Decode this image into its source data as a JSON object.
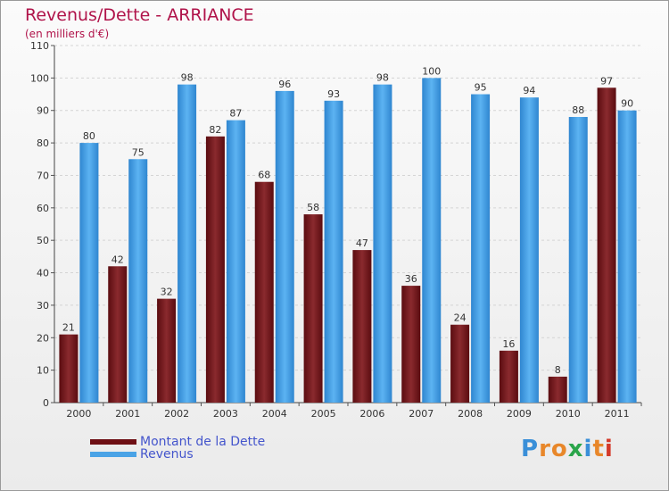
{
  "chart_data": {
    "type": "bar",
    "title": "Revenus/Dette - ARRIANCE",
    "subtitle": "(en milliers d'€)",
    "categories": [
      "2000",
      "2001",
      "2002",
      "2003",
      "2004",
      "2005",
      "2006",
      "2007",
      "2008",
      "2009",
      "2010",
      "2011"
    ],
    "series": [
      {
        "name": "Montant de la Dette",
        "color": "#7a1a1e",
        "values": [
          21,
          42,
          32,
          82,
          68,
          58,
          47,
          36,
          24,
          16,
          8,
          97
        ]
      },
      {
        "name": "Revenus",
        "color": "#4aa3e6",
        "values": [
          80,
          75,
          98,
          87,
          96,
          93,
          98,
          100,
          95,
          94,
          88,
          90
        ]
      }
    ],
    "ylim": [
      0,
      110
    ],
    "yticks": [
      0,
      10,
      20,
      30,
      40,
      50,
      60,
      70,
      80,
      90,
      100,
      110
    ],
    "grid": true,
    "legend_position": "bottom-left"
  },
  "legend": {
    "items": [
      {
        "label": "Montant de la Dette",
        "color": "#7a1a1e"
      },
      {
        "label": "Revenus",
        "color": "#4aa3e6"
      }
    ]
  },
  "logo": {
    "letters": [
      "P",
      "r",
      "o",
      "x",
      "i",
      "t",
      "i"
    ],
    "colors": [
      "#3a8fd8",
      "#e8872a",
      "#e8872a",
      "#2aa54a",
      "#3a8fd8",
      "#e8872a",
      "#d43a2a"
    ]
  }
}
